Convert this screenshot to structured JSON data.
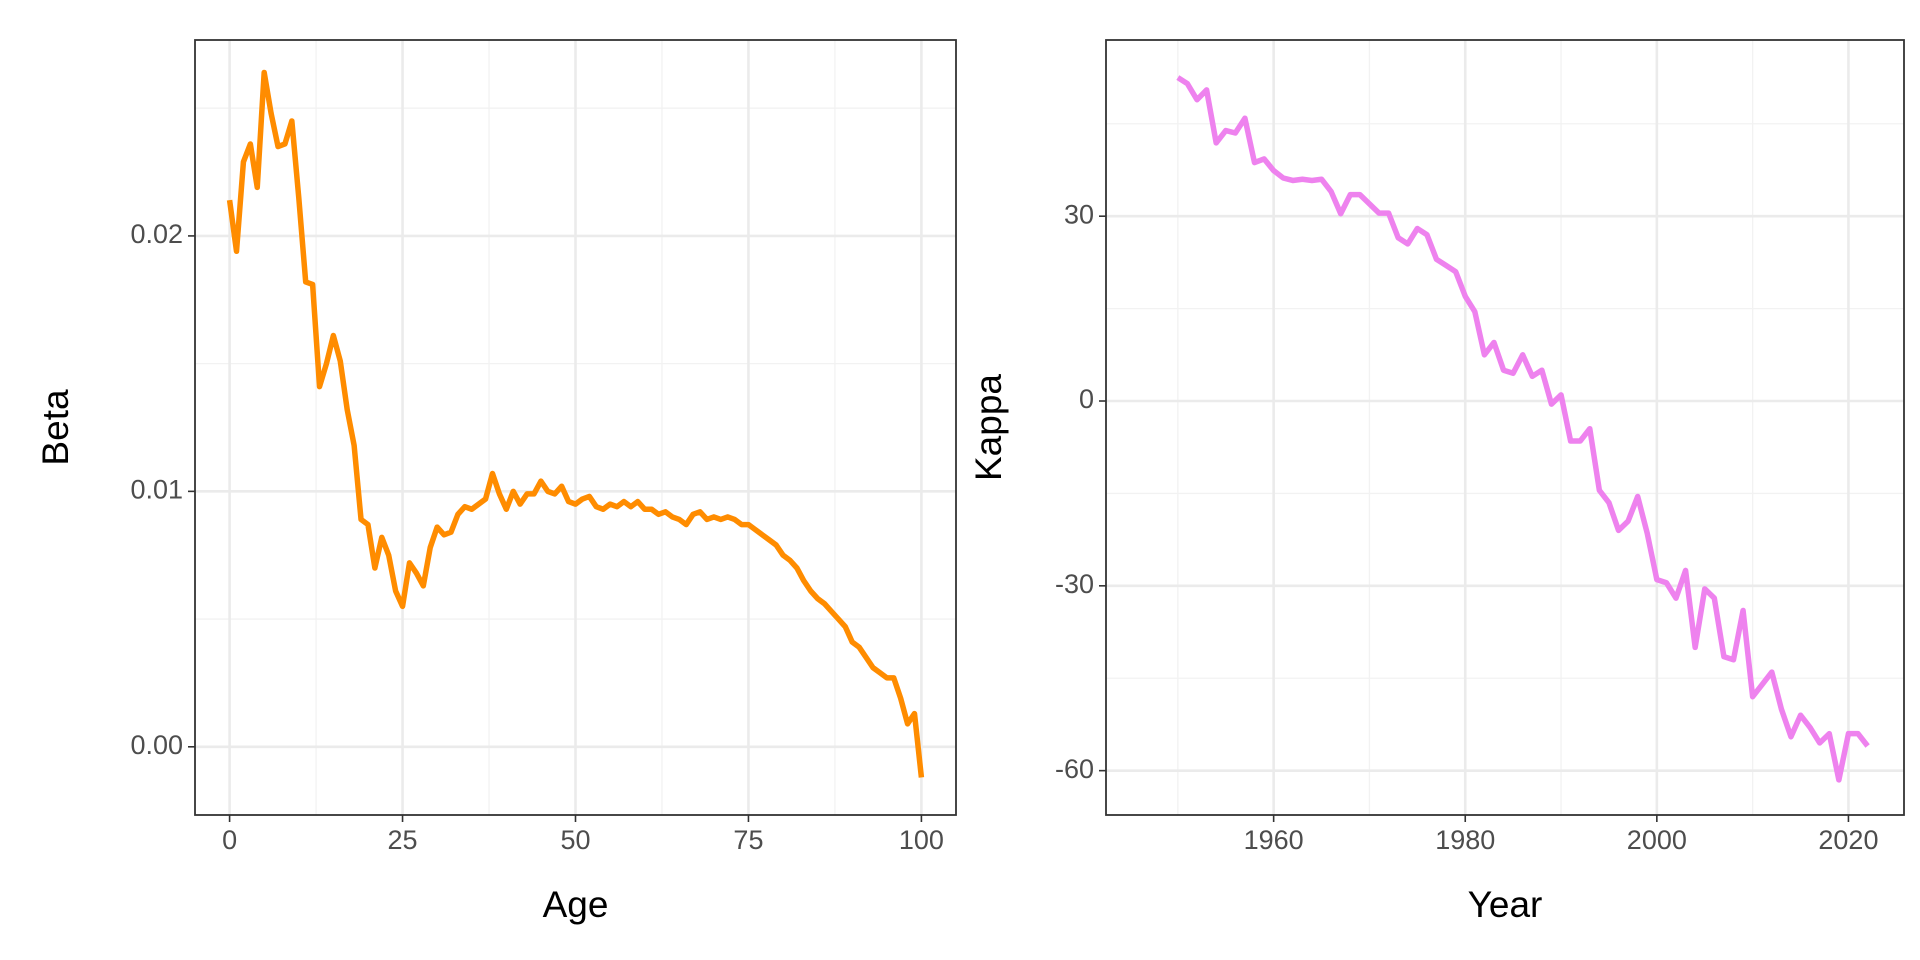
{
  "chart_data": [
    {
      "type": "line",
      "x_label": "Age",
      "y_label": "Beta",
      "x": [
        0,
        1,
        2,
        3,
        4,
        5,
        6,
        7,
        8,
        9,
        10,
        11,
        12,
        13,
        14,
        15,
        16,
        17,
        18,
        19,
        20,
        21,
        22,
        23,
        24,
        25,
        26,
        27,
        28,
        29,
        30,
        31,
        32,
        33,
        34,
        35,
        36,
        37,
        38,
        39,
        40,
        41,
        42,
        43,
        44,
        45,
        46,
        47,
        48,
        49,
        50,
        51,
        52,
        53,
        54,
        55,
        56,
        57,
        58,
        59,
        60,
        61,
        62,
        63,
        64,
        65,
        66,
        67,
        68,
        69,
        70,
        71,
        72,
        73,
        74,
        75,
        76,
        77,
        78,
        79,
        80,
        81,
        82,
        83,
        84,
        85,
        86,
        87,
        88,
        89,
        90,
        91,
        92,
        93,
        94,
        95,
        96,
        97,
        98,
        99,
        100
      ],
      "series": [
        {
          "color": "#ff8c00",
          "values": [
            0.0214,
            0.0194,
            0.0229,
            0.0236,
            0.0219,
            0.0264,
            0.0248,
            0.0235,
            0.0236,
            0.0245,
            0.0215,
            0.0182,
            0.0181,
            0.0141,
            0.015,
            0.0161,
            0.0151,
            0.0132,
            0.0118,
            0.0089,
            0.0087,
            0.007,
            0.0082,
            0.0075,
            0.0061,
            0.0055,
            0.0072,
            0.0068,
            0.0063,
            0.0078,
            0.0086,
            0.0083,
            0.0084,
            0.0091,
            0.0094,
            0.0093,
            0.0095,
            0.0097,
            0.0107,
            0.0099,
            0.0093,
            0.01,
            0.0095,
            0.0099,
            0.0099,
            0.0104,
            0.01,
            0.0099,
            0.0102,
            0.0096,
            0.0095,
            0.0097,
            0.0098,
            0.0094,
            0.0093,
            0.0095,
            0.0094,
            0.0096,
            0.0094,
            0.0096,
            0.0093,
            0.0093,
            0.0091,
            0.0092,
            0.009,
            0.0089,
            0.0087,
            0.0091,
            0.0092,
            0.0089,
            0.009,
            0.0089,
            0.009,
            0.0089,
            0.0087,
            0.0087,
            0.0085,
            0.0083,
            0.0081,
            0.0079,
            0.0075,
            0.0073,
            0.007,
            0.0065,
            0.0061,
            0.0058,
            0.0056,
            0.0053,
            0.005,
            0.0047,
            0.0041,
            0.0039,
            0.0035,
            0.0031,
            0.0029,
            0.0027,
            0.0027,
            0.0019,
            0.0009,
            0.0013,
            -0.0012
          ]
        }
      ],
      "xlim": [
        -5,
        105
      ],
      "xticks": [
        0,
        25,
        50,
        75,
        100
      ],
      "ylim": [
        -0.00267,
        0.02767
      ],
      "yticks": [
        {
          "value": 0,
          "label": "0.00"
        },
        0.01,
        0.02
      ],
      "grid": true
    },
    {
      "type": "line",
      "x_label": "Year",
      "y_label": "Kappa",
      "x": [
        1950,
        1951,
        1952,
        1953,
        1954,
        1955,
        1956,
        1957,
        1958,
        1959,
        1960,
        1961,
        1962,
        1963,
        1964,
        1965,
        1966,
        1967,
        1968,
        1969,
        1970,
        1971,
        1972,
        1973,
        1974,
        1975,
        1976,
        1977,
        1978,
        1979,
        1980,
        1981,
        1982,
        1983,
        1984,
        1985,
        1986,
        1987,
        1988,
        1989,
        1990,
        1991,
        1992,
        1993,
        1994,
        1995,
        1996,
        1997,
        1998,
        1999,
        2000,
        2001,
        2002,
        2003,
        2004,
        2005,
        2006,
        2007,
        2008,
        2009,
        2010,
        2011,
        2012,
        2013,
        2014,
        2015,
        2016,
        2017,
        2018,
        2019,
        2020,
        2021,
        2022
      ],
      "series": [
        {
          "color": "#ee82ee",
          "values": [
            52.5,
            51.5,
            48.9,
            50.5,
            41.9,
            43.9,
            43.5,
            45.9,
            38.7,
            39.3,
            37.4,
            36.2,
            35.8,
            36.0,
            35.8,
            36.0,
            34.0,
            30.4,
            33.5,
            33.5,
            32.0,
            30.5,
            30.5,
            26.5,
            25.5,
            28.0,
            27.0,
            23.0,
            22.0,
            21.0,
            17.0,
            14.5,
            7.5,
            9.5,
            5.0,
            4.5,
            7.5,
            4.0,
            5.0,
            -0.5,
            1.0,
            -6.5,
            -6.5,
            -4.5,
            -14.5,
            -16.5,
            -21.0,
            -19.5,
            -15.5,
            -21.5,
            -29.0,
            -29.5,
            -32.0,
            -27.5,
            -40.0,
            -30.5,
            -32.0,
            -41.5,
            -42.0,
            -34.0,
            -48.0,
            -46.0,
            -44.0,
            -50.0,
            -54.5,
            -51.0,
            -53.0,
            -55.5,
            -54.0,
            -61.5,
            -54.0,
            -54.0,
            -56.0
          ]
        }
      ],
      "xlim": [
        1942.5,
        2025.8
      ],
      "xticks": [
        1960,
        1980,
        2000,
        2020
      ],
      "ylim": [
        -67.2,
        58.6
      ],
      "yticks": [
        -60,
        -30,
        0,
        30
      ],
      "grid": true
    }
  ]
}
